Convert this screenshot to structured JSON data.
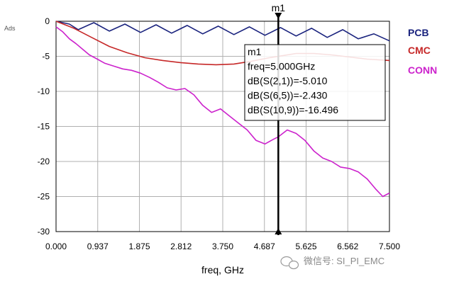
{
  "chart_data": {
    "type": "line",
    "title": "",
    "xlabel": "freq, GHz",
    "ylabel": "Ads",
    "xlim": [
      0,
      7.5
    ],
    "ylim": [
      -30,
      0
    ],
    "x_ticks": [
      "0.000",
      "0.937",
      "1.875",
      "2.812",
      "3.750",
      "4.687",
      "5.625",
      "6.562",
      "7.500"
    ],
    "y_ticks": [
      "0",
      "-5",
      "-10",
      "-15",
      "-20",
      "-25",
      "-30"
    ],
    "grid": true,
    "legend_position": "right",
    "series": [
      {
        "name": "PCB",
        "color": "#1a237e",
        "x": [
          0,
          0.3,
          0.5,
          0.85,
          1.2,
          1.55,
          1.9,
          2.25,
          2.6,
          2.95,
          3.3,
          3.65,
          4.0,
          4.35,
          4.7,
          5.05,
          5.4,
          5.75,
          6.1,
          6.45,
          6.8,
          7.15,
          7.5
        ],
        "y": [
          0,
          -0.4,
          -1.2,
          -0.2,
          -1.4,
          -0.4,
          -1.6,
          -0.5,
          -1.7,
          -0.6,
          -1.8,
          -0.7,
          -1.9,
          -0.8,
          -2.0,
          -0.9,
          -2.1,
          -1.0,
          -2.3,
          -1.2,
          -2.5,
          -1.8,
          -2.8
        ]
      },
      {
        "name": "CMC",
        "color": "#c62828",
        "x": [
          0,
          0.4,
          0.8,
          1.2,
          1.6,
          2.0,
          2.4,
          2.8,
          3.2,
          3.6,
          4.0,
          4.4,
          4.8,
          5.0,
          5.4,
          5.8,
          6.2,
          6.6,
          7.0,
          7.5
        ],
        "y": [
          0,
          -1.0,
          -2.3,
          -3.6,
          -4.5,
          -5.2,
          -5.6,
          -5.9,
          -6.1,
          -6.2,
          -6.1,
          -5.7,
          -5.2,
          -5.01,
          -4.6,
          -4.6,
          -4.8,
          -5.1,
          -5.4,
          -5.6
        ]
      },
      {
        "name": "CONN",
        "color": "#cc22cc",
        "x": [
          0,
          0.15,
          0.3,
          0.45,
          0.6,
          0.75,
          0.9,
          1.1,
          1.3,
          1.5,
          1.7,
          1.9,
          2.1,
          2.3,
          2.5,
          2.7,
          2.9,
          3.1,
          3.3,
          3.5,
          3.7,
          3.9,
          4.1,
          4.3,
          4.5,
          4.7,
          4.9,
          5.0,
          5.2,
          5.4,
          5.6,
          5.8,
          6.0,
          6.2,
          6.4,
          6.6,
          6.8,
          7.0,
          7.2,
          7.35,
          7.5
        ],
        "y": [
          -0.8,
          -1.5,
          -2.5,
          -3.2,
          -4.0,
          -4.8,
          -5.3,
          -6.0,
          -6.4,
          -6.8,
          -7.0,
          -7.4,
          -8.0,
          -8.7,
          -9.5,
          -9.8,
          -9.6,
          -10.5,
          -12.0,
          -13.0,
          -12.5,
          -13.5,
          -14.5,
          -15.5,
          -17.0,
          -17.5,
          -16.8,
          -16.496,
          -15.5,
          -16.0,
          -17.0,
          -18.5,
          -19.5,
          -20.0,
          -20.8,
          -21.0,
          -21.5,
          -22.5,
          -24.0,
          -25.0,
          -24.5
        ]
      }
    ],
    "marker": {
      "name": "m1",
      "x": 5.0,
      "lines": [
        "m1",
        "freq=5.000GHz",
        "dB(S(2,1))=-5.010",
        "dB(S(6,5))=-2.430",
        "dB(S(10,9))=-16.496"
      ]
    }
  },
  "legend": [
    {
      "label": "PCB",
      "color": "#1a237e"
    },
    {
      "label": "CMC",
      "color": "#c62828"
    },
    {
      "label": "CONN",
      "color": "#cc22cc"
    }
  ],
  "watermark": "微信号: SI_PI_EMC"
}
